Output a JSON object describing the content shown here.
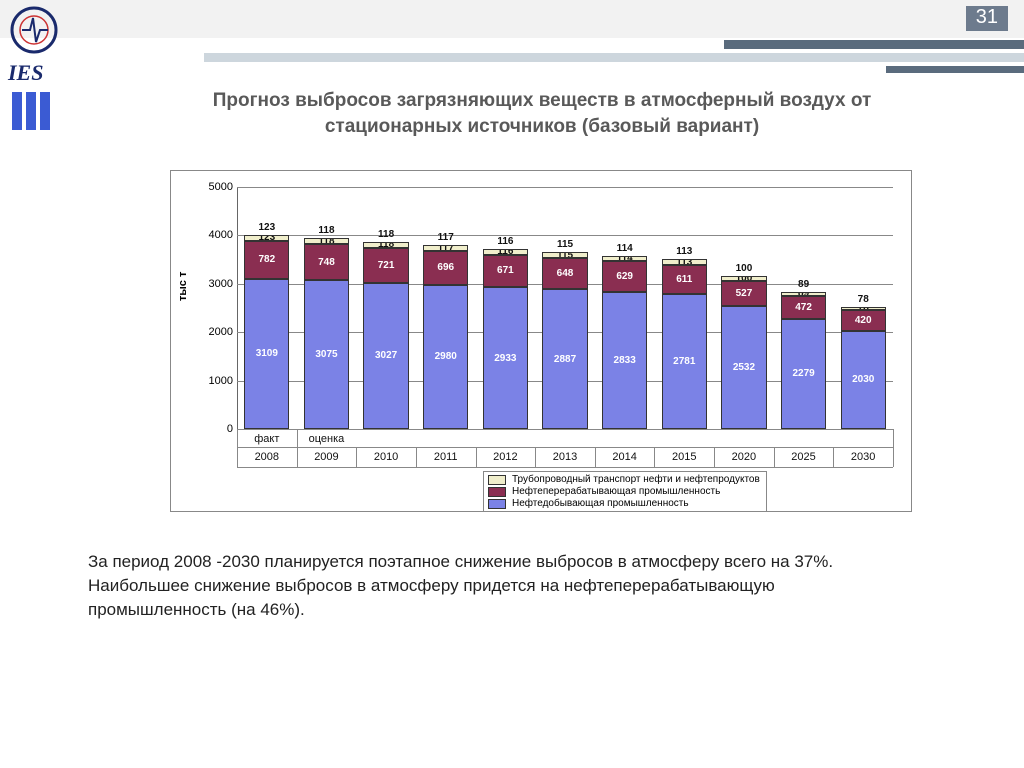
{
  "page_number": "31",
  "logo_text": "IES",
  "title_line1": "Прогноз выбросов загрязняющих веществ в атмосферный воздух от",
  "title_line2": "стационарных источников (базовый вариант)",
  "caption_line1": "За период 2008 -2030 планируется  поэтапное снижение выбросов в атмосферу всего на 37%.",
  "caption_line2": "Наибольшее снижение выбросов в атмосферу придется на нефтеперерабатывающую",
  "caption_line3": "промышленность (на 46%).",
  "ylabel": "тыс т",
  "chart": {
    "type": "stacked-bar",
    "ylim": [
      0,
      5000
    ],
    "ytick_step": 1000,
    "yticks": [
      "0",
      "1000",
      "2000",
      "3000",
      "4000",
      "5000"
    ],
    "background_color": "#ffffff",
    "grid_color": "#888888",
    "bar_border": "#333333",
    "series": [
      {
        "key": "s1",
        "label": "Нефтедобывающая промышленность",
        "color": "#7b82e6",
        "text": "#ffffff"
      },
      {
        "key": "s2",
        "label": "Нефтеперерабатывающая промышленность",
        "color": "#8a2e51",
        "text": "#ffffff"
      },
      {
        "key": "s3",
        "label": "Трубопроводный транспорт нефти и нефтепродуктов",
        "color": "#f0eecb",
        "text": "#111111"
      }
    ],
    "columns": [
      {
        "cat": "факт",
        "year": "2008",
        "s1": 3109,
        "s2": 782,
        "s3": 123
      },
      {
        "cat": "оценка",
        "year": "2009",
        "s1": 3075,
        "s2": 748,
        "s3": 118
      },
      {
        "cat": "",
        "year": "2010",
        "s1": 3027,
        "s2": 721,
        "s3": 118
      },
      {
        "cat": "",
        "year": "2011",
        "s1": 2980,
        "s2": 696,
        "s3": 117
      },
      {
        "cat": "",
        "year": "2012",
        "s1": 2933,
        "s2": 671,
        "s3": 116
      },
      {
        "cat": "",
        "year": "2013",
        "s1": 2887,
        "s2": 648,
        "s3": 115
      },
      {
        "cat": "",
        "year": "2014",
        "s1": 2833,
        "s2": 629,
        "s3": 114
      },
      {
        "cat": "",
        "year": "2015",
        "s1": 2781,
        "s2": 611,
        "s3": 113
      },
      {
        "cat": "",
        "year": "2020",
        "s1": 2532,
        "s2": 527,
        "s3": 100
      },
      {
        "cat": "",
        "year": "2025",
        "s1": 2279,
        "s2": 472,
        "s3": 89
      },
      {
        "cat": "",
        "year": "2030",
        "s1": 2030,
        "s2": 420,
        "s3": 78
      }
    ]
  },
  "decor": {
    "topbar_bg": "#f2f2f2",
    "page_badge_bg": "#6d7b8d",
    "stripe_dark": "#5a6b7d",
    "stripe_light": "#cdd6dd"
  }
}
